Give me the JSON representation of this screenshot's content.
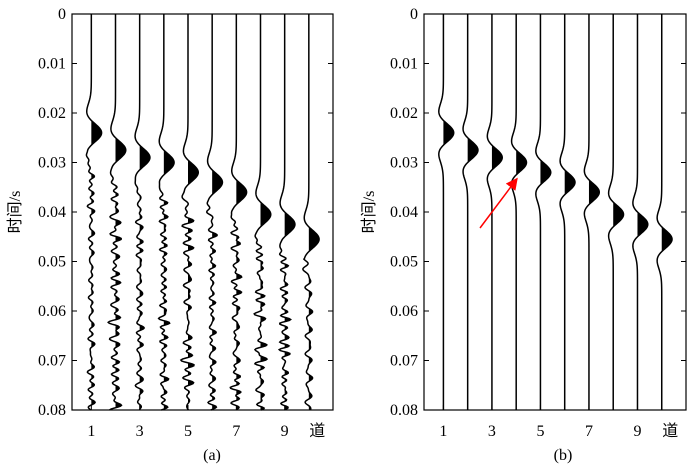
{
  "chart_data": [
    {
      "type": "line",
      "caption": "(a)",
      "ylabel": "时间/s",
      "y_ticks": [
        "0",
        "0.01",
        "0.02",
        "0.03",
        "0.04",
        "0.05",
        "0.06",
        "0.07",
        "0.08"
      ],
      "x_ticks": [
        "1",
        "3",
        "5",
        "7",
        "9",
        "道"
      ],
      "ylim": [
        0,
        0.08
      ],
      "x_range": [
        0.2,
        11.0
      ],
      "trace_positions": [
        1,
        2,
        3,
        4,
        5,
        6,
        7,
        8,
        9,
        10
      ],
      "event_arrival_times_s": [
        0.024,
        0.0275,
        0.029,
        0.03,
        0.032,
        0.034,
        0.036,
        0.0405,
        0.0425,
        0.0455
      ],
      "noise": true,
      "annotation_arrow": false
    },
    {
      "type": "line",
      "caption": "(b)",
      "ylabel": "时间/s",
      "y_ticks": [
        "0",
        "0.01",
        "0.02",
        "0.03",
        "0.04",
        "0.05",
        "0.06",
        "0.07",
        "0.08"
      ],
      "x_ticks": [
        "1",
        "3",
        "5",
        "7",
        "9",
        "道"
      ],
      "ylim": [
        0,
        0.08
      ],
      "x_range": [
        0.2,
        11.0
      ],
      "trace_positions": [
        1,
        2,
        3,
        4,
        5,
        6,
        7,
        8,
        9,
        10
      ],
      "event_arrival_times_s": [
        0.024,
        0.0275,
        0.029,
        0.03,
        0.032,
        0.034,
        0.036,
        0.0405,
        0.0425,
        0.0455
      ],
      "noise": false,
      "annotation_arrow": true,
      "arrow_color": "#ff0000"
    }
  ]
}
